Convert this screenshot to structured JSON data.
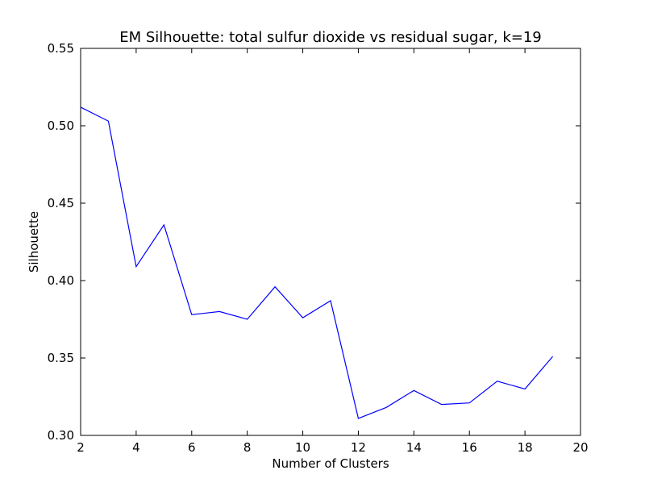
{
  "chart_data": {
    "type": "line",
    "title": "EM Silhouette: total sulfur dioxide vs residual sugar, k=19",
    "xlabel": "Number of Clusters",
    "ylabel": "Silhouette",
    "xlim": [
      2,
      20
    ],
    "ylim": [
      0.3,
      0.55
    ],
    "xticks": [
      2,
      4,
      6,
      8,
      10,
      12,
      14,
      16,
      18,
      20
    ],
    "yticks": [
      0.3,
      0.35,
      0.4,
      0.45,
      0.5,
      0.55
    ],
    "grid": false,
    "series": [
      {
        "color": "#0000ff",
        "x": [
          2,
          3,
          4,
          5,
          6,
          7,
          8,
          9,
          10,
          11,
          12,
          13,
          14,
          15,
          16,
          17,
          18,
          19
        ],
        "y": [
          0.512,
          0.503,
          0.409,
          0.436,
          0.378,
          0.38,
          0.375,
          0.396,
          0.376,
          0.387,
          0.311,
          0.318,
          0.329,
          0.32,
          0.321,
          0.335,
          0.33,
          0.351
        ]
      }
    ]
  }
}
